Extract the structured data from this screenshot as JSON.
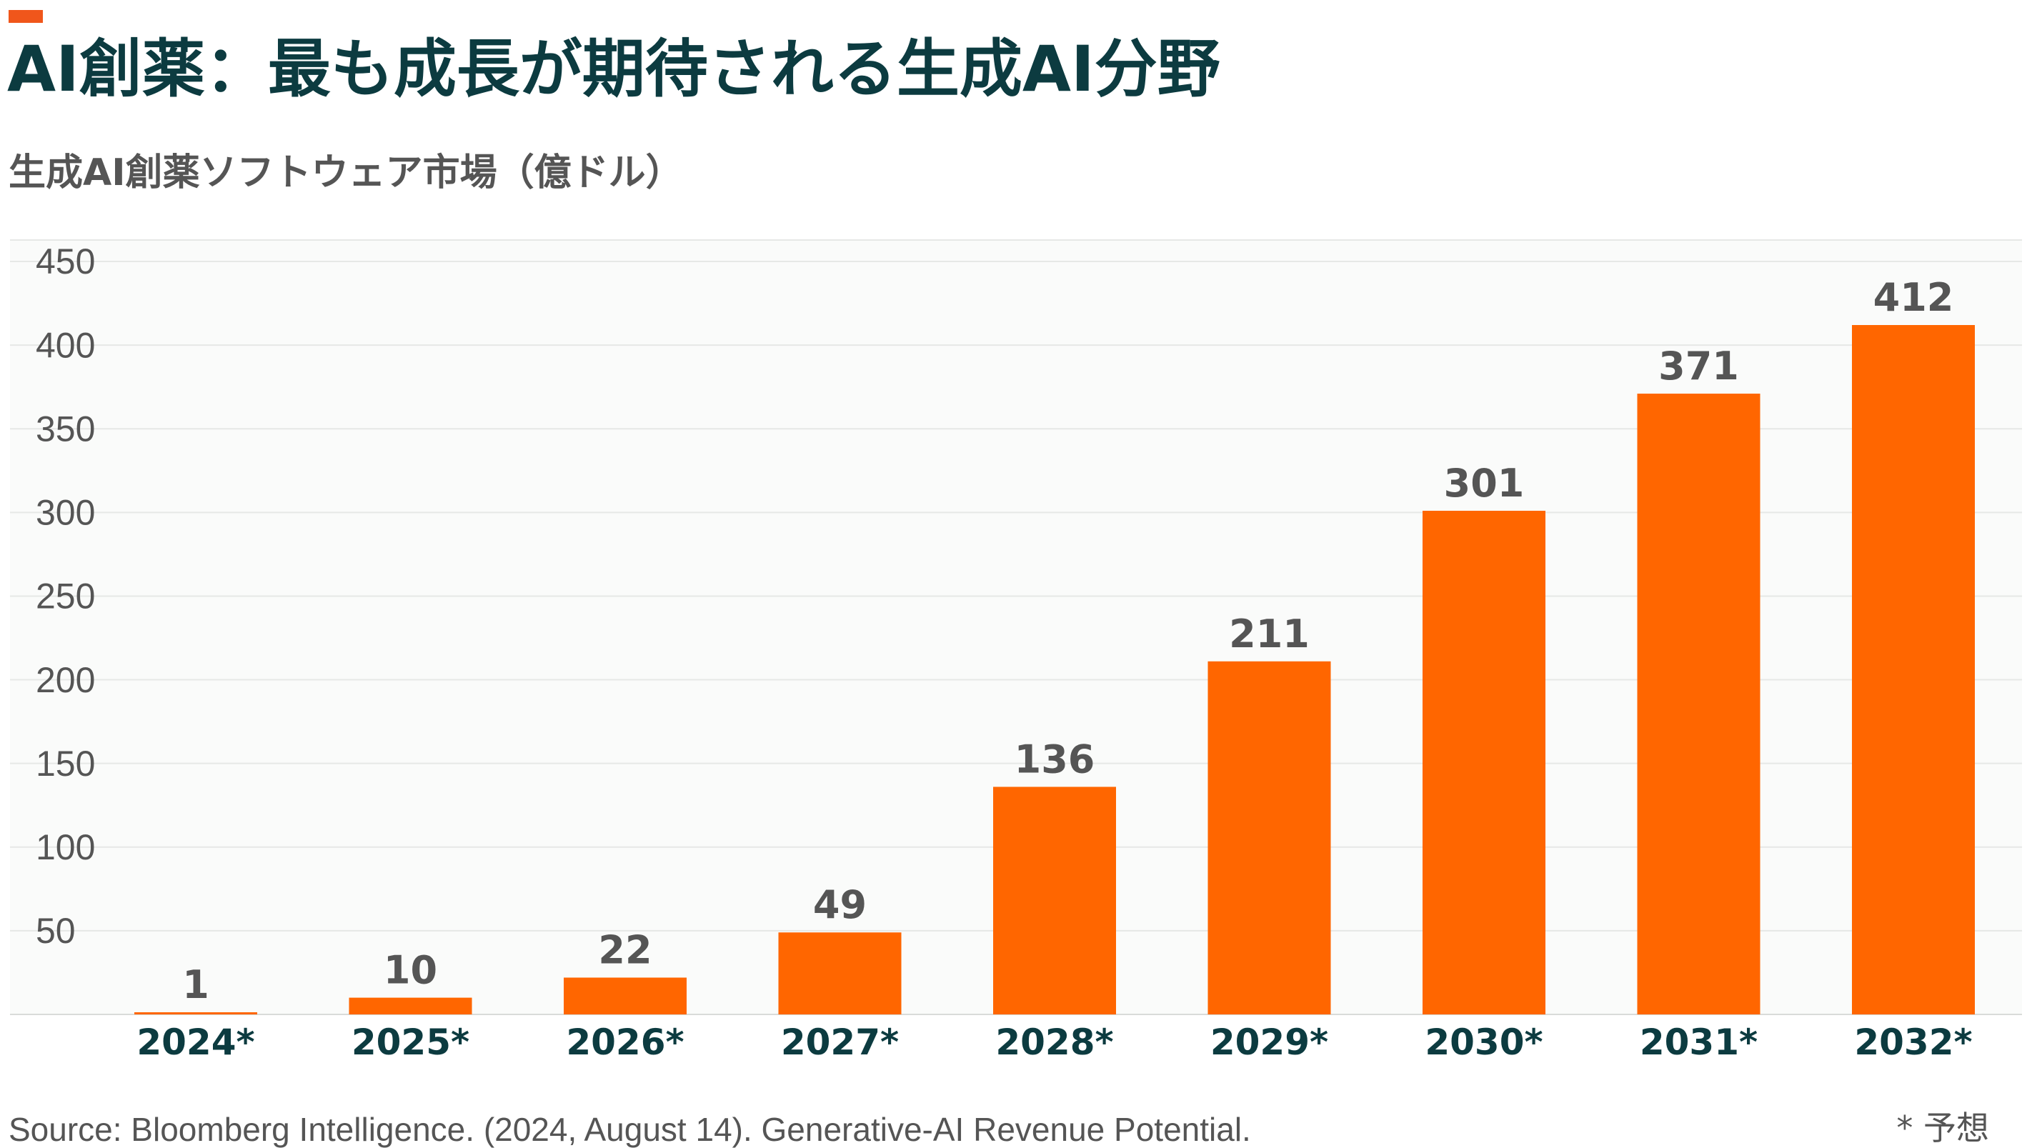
{
  "header": {
    "title": "AI創薬：最も成長が期待される生成AI分野",
    "subtitle": "生成AI創薬ソフトウェア市場（億ドル）"
  },
  "chart_data": {
    "type": "bar",
    "categories": [
      "2024*",
      "2025*",
      "2026*",
      "2027*",
      "2028*",
      "2029*",
      "2030*",
      "2031*",
      "2032*"
    ],
    "values": [
      1,
      10,
      22,
      49,
      136,
      211,
      301,
      371,
      412
    ],
    "ylim": [
      0,
      450
    ],
    "yticks": [
      50,
      100,
      150,
      200,
      250,
      300,
      350,
      400,
      450
    ],
    "grid": true,
    "bar_color": "#ff6600",
    "title": "生成AI創薬ソフトウェア市場（億ドル）",
    "xlabel": "",
    "ylabel": ""
  },
  "footer": {
    "source": "Source: Bloomberg Intelligence. (2024, August 14). Generative-AI Revenue Potential.",
    "note": "* 予想"
  },
  "colors": {
    "accent": "#f0561b",
    "title": "#0c3b40",
    "bar": "#ff6600",
    "text_muted": "#555555",
    "plot_bg": "#fafbfa"
  }
}
